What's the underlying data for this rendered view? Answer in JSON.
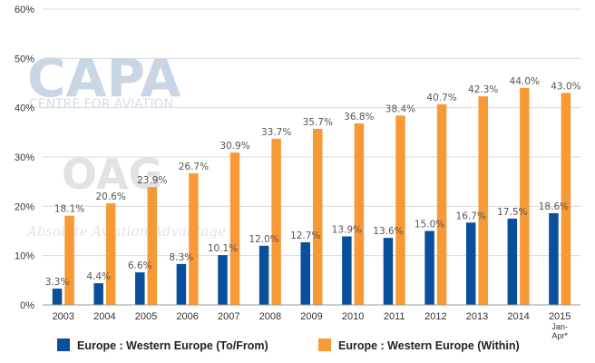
{
  "watermarks": {
    "capa_logo": "CAPA",
    "capa_tagline": "CENTRE FOR AVIATION",
    "oag_logo": "OAG",
    "oag_tagline": "Absolute Aviation Advantage"
  },
  "chart_data": {
    "type": "bar",
    "title": "",
    "xlabel": "",
    "ylabel": "",
    "categories": [
      "2003",
      "2004",
      "2005",
      "2006",
      "2007",
      "2008",
      "2009",
      "2010",
      "2011",
      "2012",
      "2013",
      "2014",
      "2015 Jan-Apr*"
    ],
    "category_label_lines": [
      [
        "2003"
      ],
      [
        "2004"
      ],
      [
        "2005"
      ],
      [
        "2006"
      ],
      [
        "2007"
      ],
      [
        "2008"
      ],
      [
        "2009"
      ],
      [
        "2010"
      ],
      [
        "2011"
      ],
      [
        "2012"
      ],
      [
        "2013"
      ],
      [
        "2014"
      ],
      [
        "2015",
        "Jan-",
        "Apr*"
      ]
    ],
    "series": [
      {
        "name": "Europe : Western Europe (To/From)",
        "color": "#0a4f9c",
        "values": [
          3.3,
          4.4,
          6.6,
          8.3,
          10.1,
          12.0,
          12.7,
          13.9,
          13.6,
          15.0,
          16.7,
          17.5,
          18.6
        ],
        "labels": [
          "3.3%",
          "4.4%",
          "6.6%",
          "8.3%",
          "10.1%",
          "12.0%",
          "12.7%",
          "13.9%",
          "13.6%",
          "15.0%",
          "16.7%",
          "17.5%",
          "18.6%"
        ]
      },
      {
        "name": "Europe : Western Europe (Within)",
        "color": "#f79a36",
        "values": [
          18.1,
          20.6,
          23.9,
          26.7,
          30.9,
          33.7,
          35.7,
          36.8,
          38.4,
          40.7,
          42.3,
          44.0,
          43.0
        ],
        "labels": [
          "18.1%",
          "20.6%",
          "23.9%",
          "26.7%",
          "30.9%",
          "33.7%",
          "35.7%",
          "36.8%",
          "38.4%",
          "40.7%",
          "42.3%",
          "44.0%",
          "43.0%"
        ]
      }
    ],
    "y_ticks": [
      0,
      10,
      20,
      30,
      40,
      50,
      60
    ],
    "y_tick_labels": [
      "0%",
      "10%",
      "20%",
      "30%",
      "40%",
      "50%",
      "60%"
    ],
    "ylim": [
      0,
      60
    ],
    "grid": true,
    "legend_position": "bottom"
  }
}
